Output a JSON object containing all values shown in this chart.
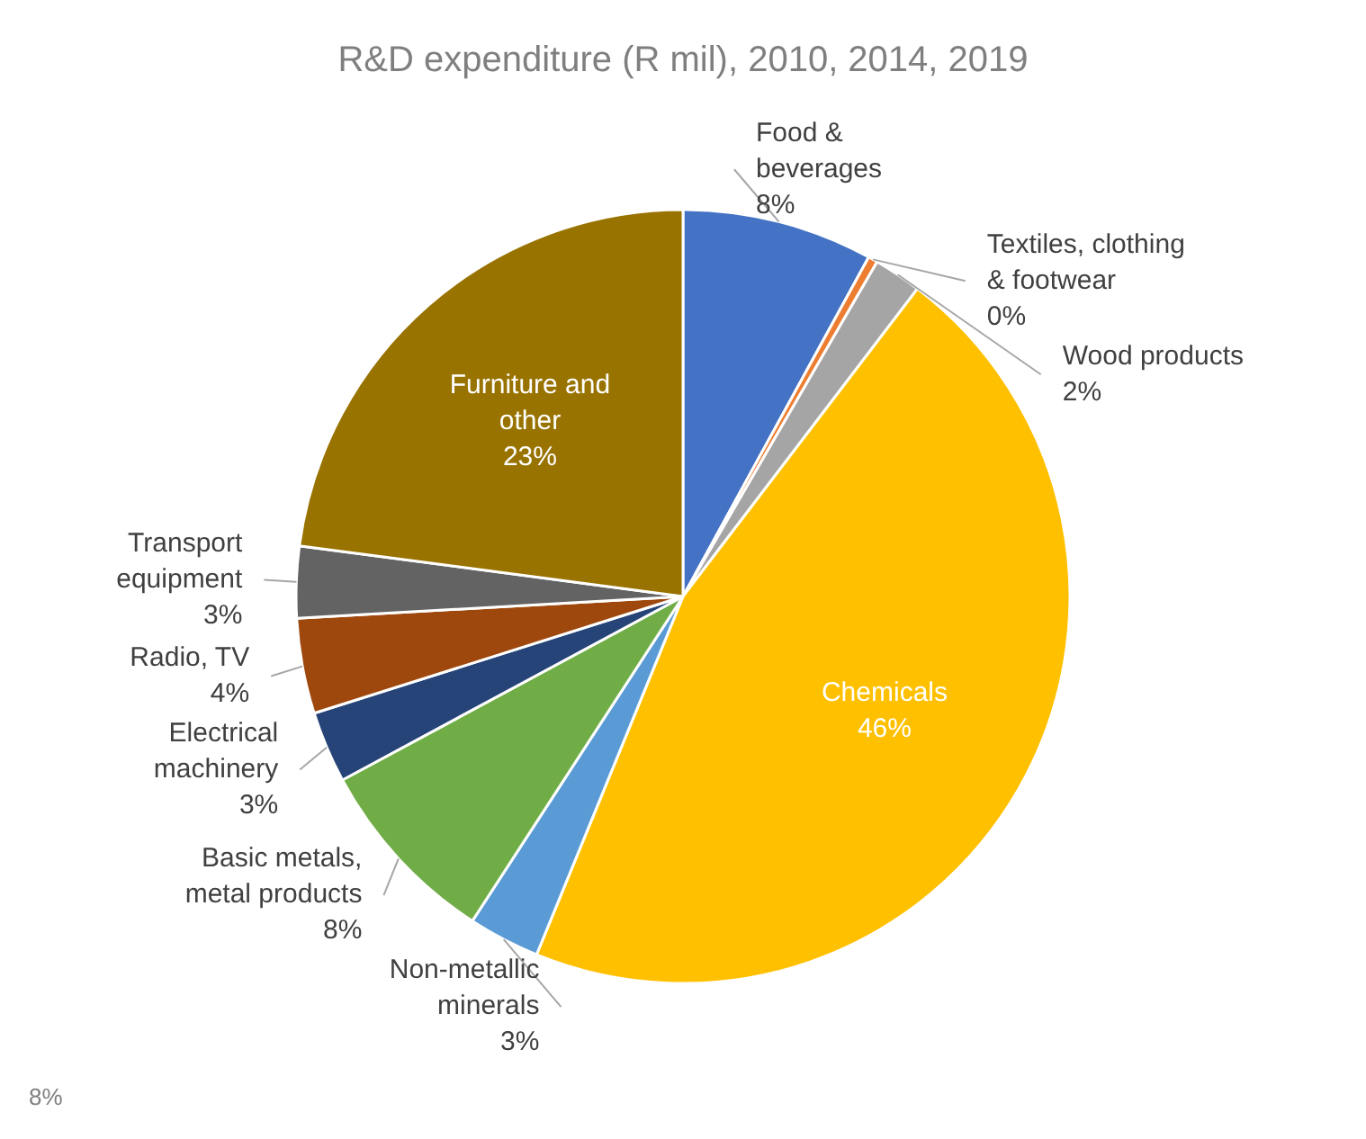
{
  "chart_data": {
    "type": "pie",
    "title": "R&D expenditure (R mil), 2010, 2014, 2019",
    "categories": [
      "Food & beverages",
      "Textiles, clothing & footwear",
      "Wood products",
      "Chemicals",
      "Non-metallic minerals",
      "Basic metals, metal products",
      "Electrical machinery",
      "Radio, TV",
      "Transport equipment",
      "Furniture and other"
    ],
    "values": [
      8,
      0.4,
      2,
      46,
      3,
      8,
      3,
      4,
      3,
      23
    ],
    "value_labels": [
      "8%",
      "0%",
      "2%",
      "46%",
      "3%",
      "8%",
      "3%",
      "4%",
      "3%",
      "23%"
    ],
    "colors": [
      "#4472c4",
      "#ed7d31",
      "#a5a5a5",
      "#ffc000",
      "#5b9bd5",
      "#70ad47",
      "#264478",
      "#9e480e",
      "#636363",
      "#997300"
    ],
    "annotations": [
      "8%"
    ],
    "legend": false
  }
}
